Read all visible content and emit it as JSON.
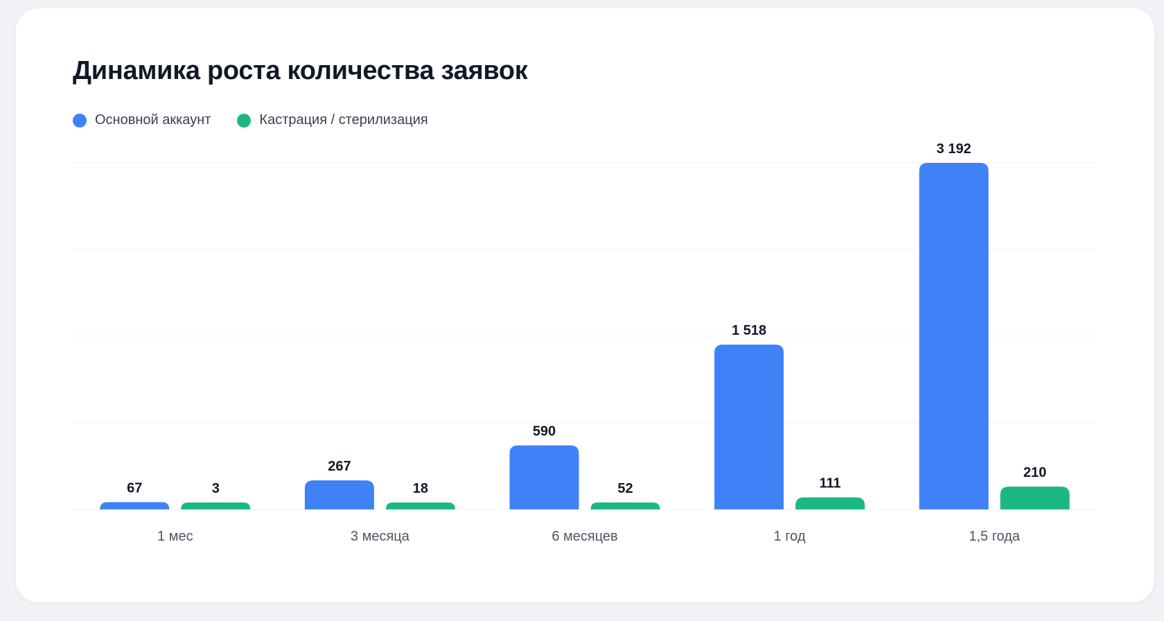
{
  "chart_data": {
    "type": "bar",
    "title": "Динамика роста количества заявок",
    "categories": [
      "1 мес",
      "3 месяца",
      "6 месяцев",
      "1 год",
      "1,5 года"
    ],
    "series": [
      {
        "name": "Основной аккаунт",
        "color": "#3f82f7",
        "values": [
          67,
          267,
          590,
          1518,
          3192
        ],
        "labels": [
          "67",
          "267",
          "590",
          "1 518",
          "3 192"
        ]
      },
      {
        "name": "Кастрация / стерилизация",
        "color": "#1cb884",
        "values": [
          3,
          18,
          52,
          111,
          210
        ],
        "labels": [
          "3",
          "18",
          "52",
          "111",
          "210"
        ]
      }
    ],
    "ylim": [
      0,
      3192
    ],
    "grid": true,
    "legend": "top-left"
  }
}
